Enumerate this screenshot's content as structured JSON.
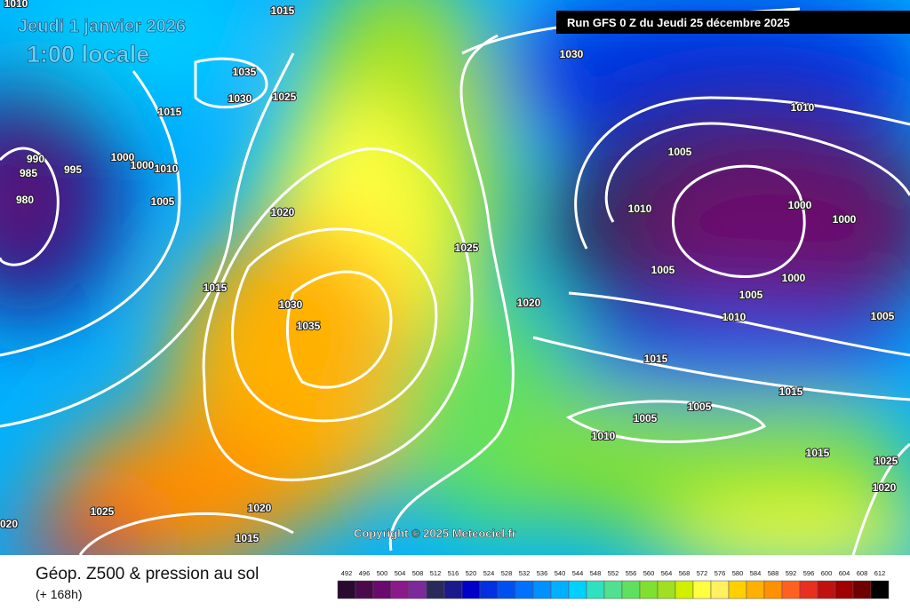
{
  "header": {
    "date": "Jeudi 1 janvier 2026",
    "time": "1:00 locale",
    "run": "Run GFS 0 Z du Jeudi 25 décembre 2025"
  },
  "copyright": "Copyright © 2025 Meteociel.fr",
  "footer": {
    "title": "Géop. Z500 & pression au sol",
    "lead": "(+ 168h)"
  },
  "isobars": {
    "labels": [
      "1010",
      "1015",
      "1035",
      "1030",
      "1025",
      "1015",
      "990",
      "985",
      "995",
      "1000",
      "1000",
      "1010",
      "980",
      "1005",
      "1020",
      "1015",
      "1030",
      "1035",
      "1025",
      "1020",
      "1030",
      "1010",
      "1005",
      "1010",
      "1000",
      "1000",
      "1005",
      "1000",
      "1005",
      "1010",
      "1005",
      "1015",
      "1015",
      "1005",
      "1005",
      "1010",
      "1015",
      "1025",
      "1020",
      "1025",
      "1020",
      "1015",
      "020"
    ]
  },
  "scale": {
    "ticks": [
      492,
      496,
      500,
      504,
      508,
      512,
      516,
      520,
      524,
      528,
      532,
      536,
      540,
      544,
      548,
      552,
      556,
      560,
      564,
      568,
      572,
      576,
      580,
      584,
      588,
      592,
      596,
      600,
      604,
      608,
      612
    ],
    "colors": [
      "#2a0a2e",
      "#4b0a4b",
      "#6a0a6e",
      "#8a1a8a",
      "#7a2a9a",
      "#2a2a5a",
      "#1a1a8a",
      "#0000c8",
      "#0030e0",
      "#0050f0",
      "#0070ff",
      "#0090ff",
      "#00b0ff",
      "#00d0ff",
      "#30e0c0",
      "#50e090",
      "#60e060",
      "#80e030",
      "#a0e020",
      "#d0f000",
      "#ffff40",
      "#fff060",
      "#ffd000",
      "#ffb000",
      "#ff9000",
      "#ff6020",
      "#e83020",
      "#c01010",
      "#a00000",
      "#700000",
      "#000000"
    ]
  }
}
